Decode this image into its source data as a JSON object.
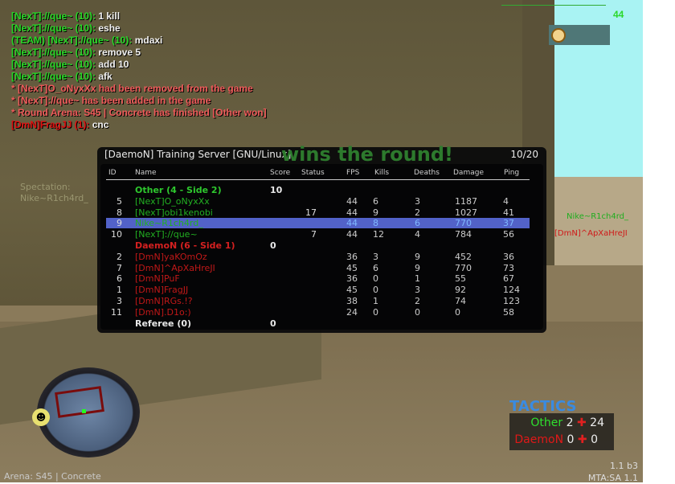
{
  "chat": [
    {
      "name": "[NexT]://que~ (10):",
      "msg": "1 kill",
      "type": "player"
    },
    {
      "name": "[NexT]://que~ (10):",
      "msg": "eshe",
      "type": "player"
    },
    {
      "name": "(TEAM) [NexT]://que~ (10):",
      "msg": "mdaxi",
      "type": "player"
    },
    {
      "name": "[NexT]://que~ (10):",
      "msg": "remove 5",
      "type": "player"
    },
    {
      "name": "[NexT]://que~ (10):",
      "msg": "add 10",
      "type": "player"
    },
    {
      "name": "[NexT]://que~ (10):",
      "msg": "afk",
      "type": "player"
    },
    {
      "name": "",
      "msg": "* [NexT]O_oNyxXx had been removed from the game",
      "type": "system"
    },
    {
      "name": "",
      "msg": "* [NexT]://que~ has been added in the game",
      "type": "system"
    },
    {
      "name": "",
      "msg": "* Round Arena: S45 | Concrete has finished [Other won]",
      "type": "system"
    },
    {
      "name": "[DmN]FragJJ (1):",
      "msg": "cnc",
      "type": "enemy"
    }
  ],
  "background_text": "wins the round!",
  "scoreboard": {
    "title": "[DaemoN] Training Server [GNU/Linux]",
    "player_count": "10/20",
    "columns": [
      "ID",
      "Name",
      "Score",
      "Status",
      "FPS",
      "Kills",
      "Deaths",
      "Damage",
      "Ping"
    ],
    "rows": [
      {
        "kind": "team",
        "name": "Other (4 - Side 2)",
        "score": "10",
        "color": "#2ec82e"
      },
      {
        "kind": "player",
        "id": "5",
        "name": "[NexT]O_oNyxXx",
        "status": "",
        "fps": "44",
        "kills": "6",
        "deaths": "3",
        "damage": "1187",
        "ping": "4",
        "color": "#22b022"
      },
      {
        "kind": "player",
        "id": "8",
        "name": "[NexT]obi1kenobi",
        "status": "17",
        "fps": "44",
        "kills": "9",
        "deaths": "2",
        "damage": "1027",
        "ping": "41",
        "color": "#22b022"
      },
      {
        "kind": "player",
        "id": "9",
        "name": "Nike~R1ch4rd_",
        "status": "",
        "fps": "44",
        "kills": "8",
        "deaths": "6",
        "damage": "770",
        "ping": "37",
        "color": "#22b022",
        "selected": true
      },
      {
        "kind": "player",
        "id": "10",
        "name": "[NexT]://que~",
        "status": "7",
        "fps": "44",
        "kills": "12",
        "deaths": "4",
        "damage": "784",
        "ping": "56",
        "color": "#22b022"
      },
      {
        "kind": "team",
        "name": "DaemoN (6 - Side 1)",
        "score": "0",
        "color": "#d42020"
      },
      {
        "kind": "player",
        "id": "2",
        "name": "[DmN]yaKOmOz",
        "status": "",
        "fps": "36",
        "kills": "3",
        "deaths": "9",
        "damage": "452",
        "ping": "36",
        "color": "#c01818"
      },
      {
        "kind": "player",
        "id": "7",
        "name": "[DmN]^ApXaHreJI",
        "status": "",
        "fps": "45",
        "kills": "6",
        "deaths": "9",
        "damage": "770",
        "ping": "73",
        "color": "#c01818"
      },
      {
        "kind": "player",
        "id": "6",
        "name": "[DmN]PuF",
        "status": "",
        "fps": "36",
        "kills": "0",
        "deaths": "1",
        "damage": "55",
        "ping": "67",
        "color": "#c01818"
      },
      {
        "kind": "player",
        "id": "1",
        "name": "[DmN]FragJJ",
        "status": "",
        "fps": "45",
        "kills": "0",
        "deaths": "3",
        "damage": "92",
        "ping": "124",
        "color": "#c01818"
      },
      {
        "kind": "player",
        "id": "3",
        "name": "[DmN]RGs.!?",
        "status": "",
        "fps": "38",
        "kills": "1",
        "deaths": "2",
        "damage": "74",
        "ping": "123",
        "color": "#c01818"
      },
      {
        "kind": "player",
        "id": "11",
        "name": "[DmN].D1o:)",
        "status": "",
        "fps": "24",
        "kills": "0",
        "deaths": "0",
        "damage": "0",
        "ping": "58",
        "color": "#c01818"
      },
      {
        "kind": "team",
        "name": "Referee (0)",
        "score": "0",
        "color": "#e8e8e8"
      }
    ]
  },
  "hud": {
    "top_number": "44",
    "timer_icon": "stopwatch-icon",
    "spectation_label": "Spectation:",
    "spectating": "Nike~R1ch4rd_",
    "nametags": [
      "Nike~R1ch4rd_",
      "[DmN]^ApXaHreJI"
    ],
    "arena": "Arena: S45 | Concrete",
    "tactics_logo": "TACTICS",
    "teams": [
      {
        "name": "Other",
        "score": "2",
        "health": "24",
        "color": "#2ee02e"
      },
      {
        "name": "DaemoN",
        "score": "0",
        "health": "0",
        "color": "#e01818"
      }
    ],
    "version": "1.1 b3",
    "mta_version": "MTA:SA 1.1"
  }
}
